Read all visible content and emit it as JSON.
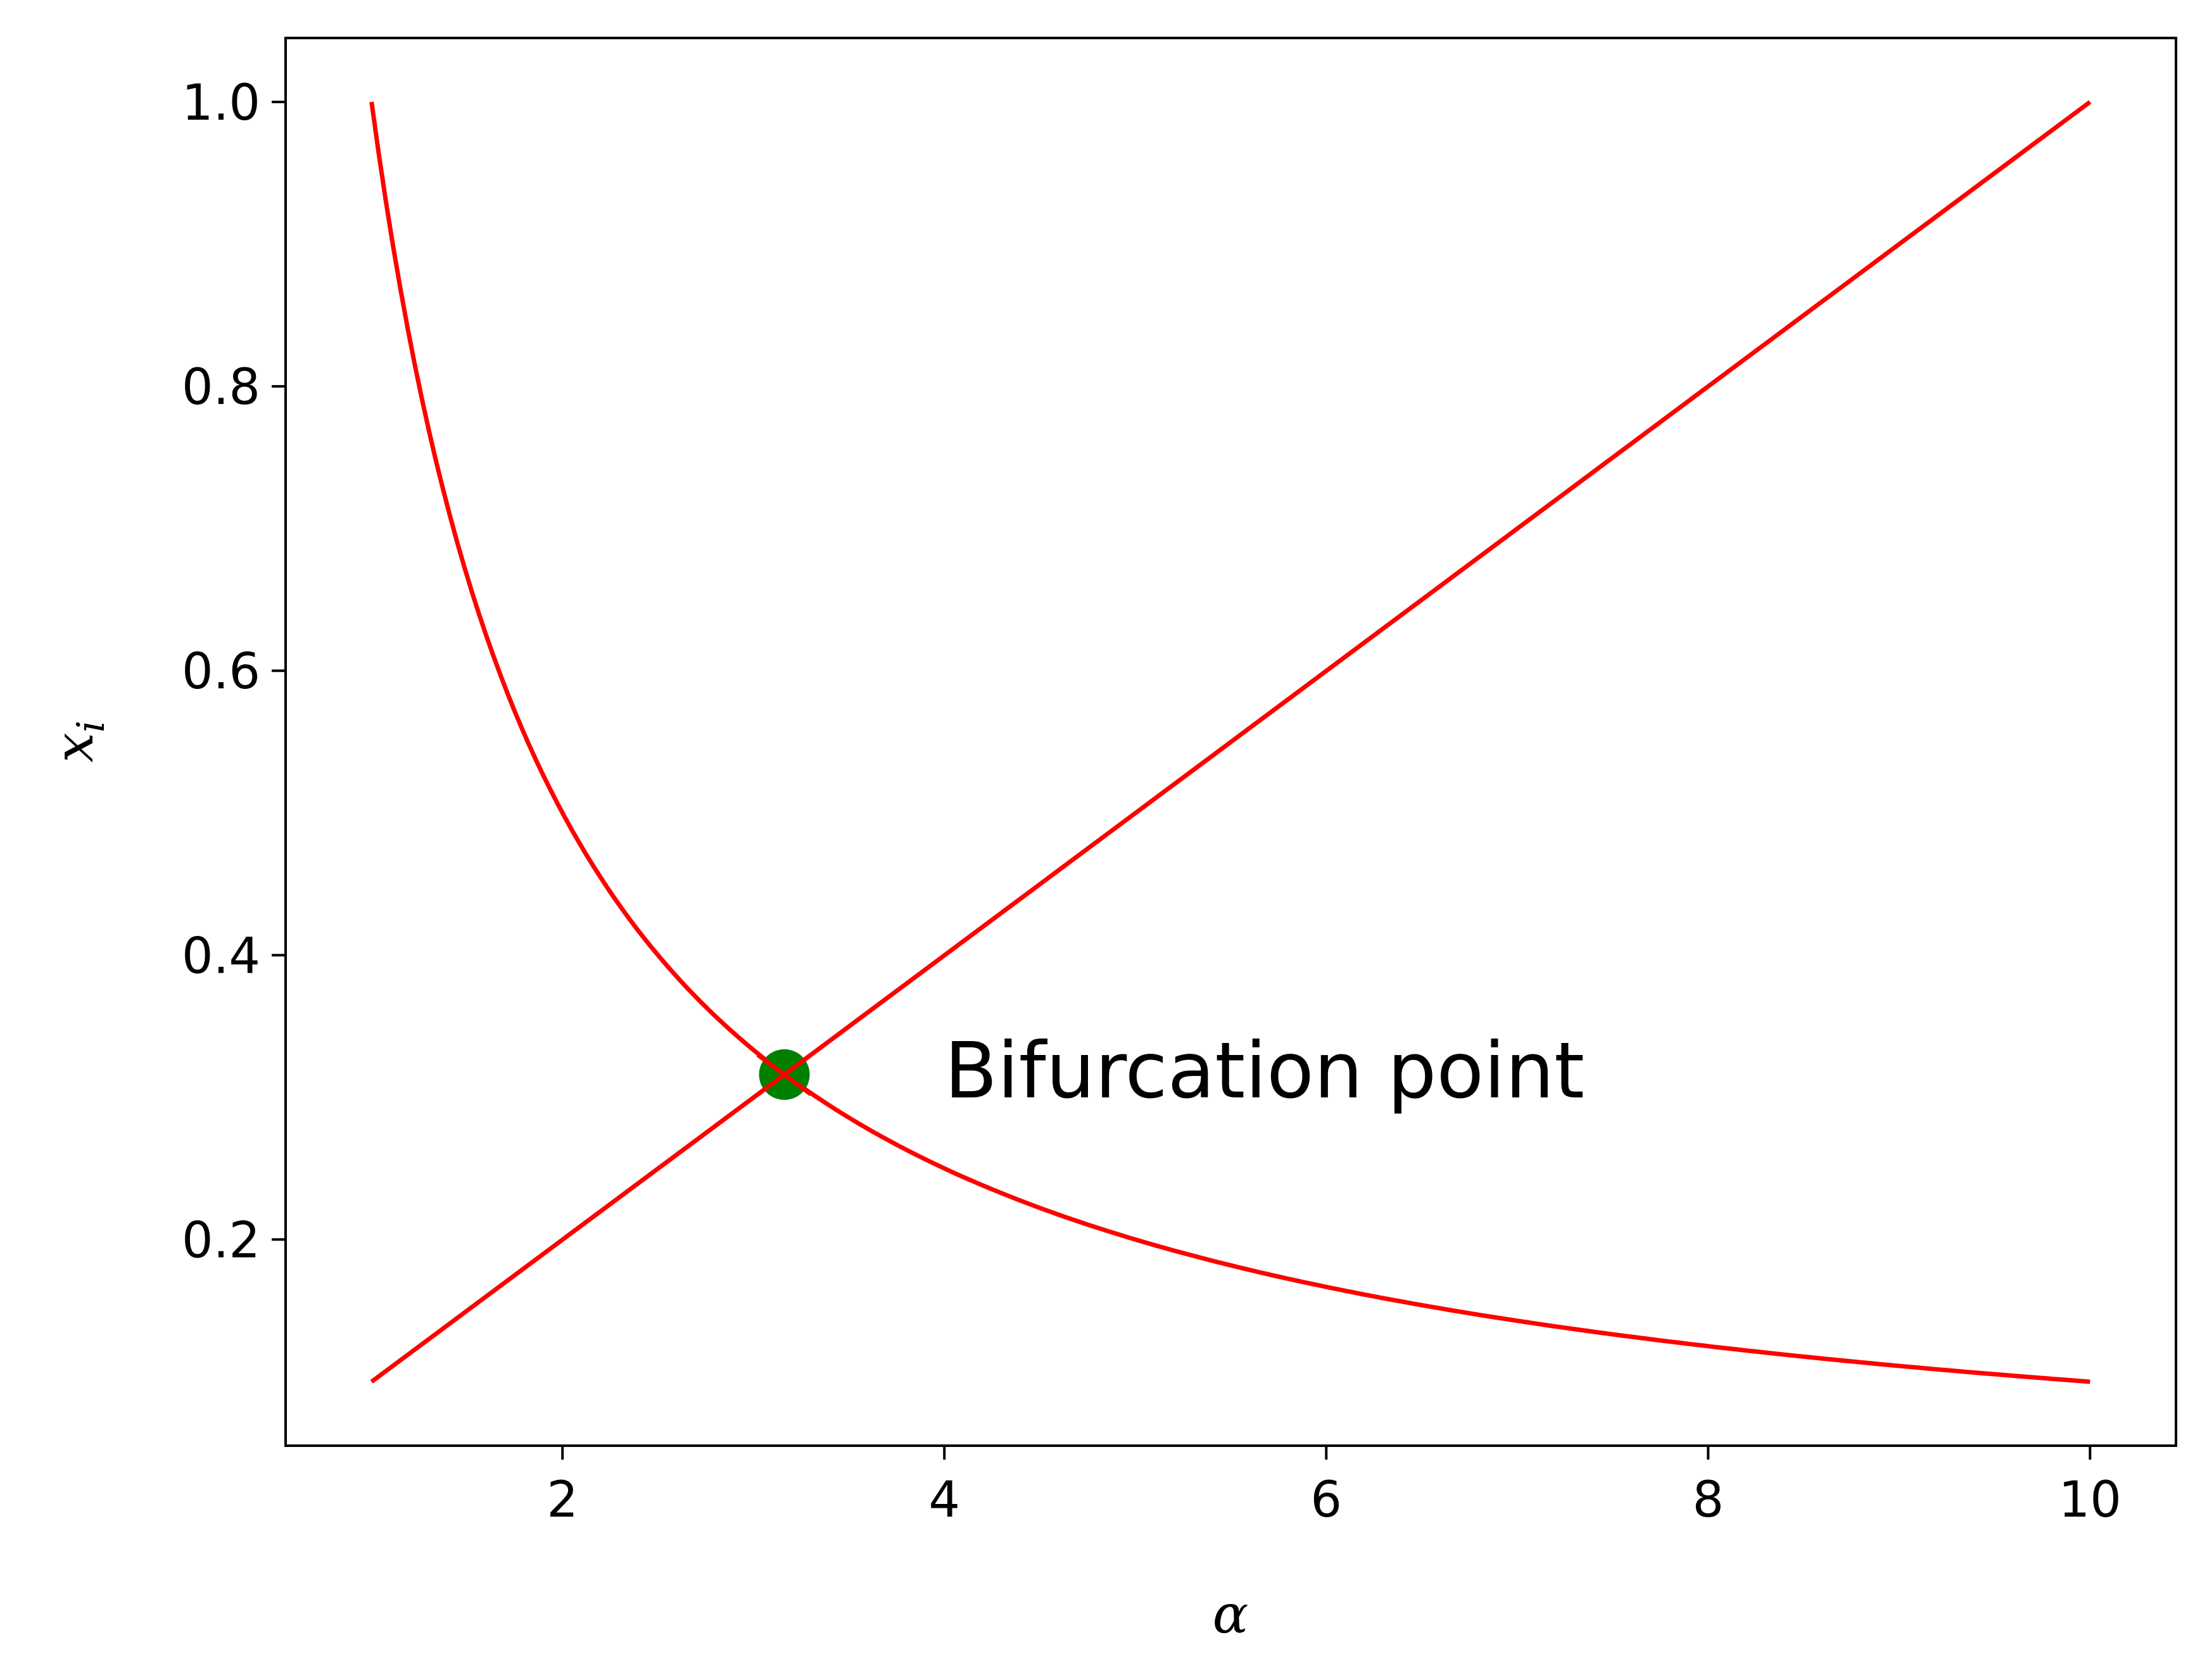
{
  "chart_data": {
    "type": "line",
    "title": "",
    "xlabel": "α",
    "ylabel": "x_i",
    "ylabel_main": "x",
    "ylabel_sub": "i",
    "xlim": [
      0.55,
      10.45
    ],
    "ylim": [
      0.055,
      1.045
    ],
    "xticks": [
      2,
      4,
      6,
      8,
      10
    ],
    "xtick_labels": [
      "2",
      "4",
      "6",
      "8",
      "10"
    ],
    "yticks": [
      0.2,
      0.4,
      0.6,
      0.8,
      1.0
    ],
    "ytick_labels": [
      "0.2",
      "0.4",
      "0.6",
      "0.8",
      "1.0"
    ],
    "grid": false,
    "series": [
      {
        "color": "#ff0000",
        "x": [
          1.0,
          1.25,
          1.5,
          1.75,
          2.0,
          2.5,
          3.0,
          3.162,
          3.5,
          4.0,
          4.5,
          5.0,
          6.0,
          7.0,
          8.0,
          9.0,
          10.0
        ],
        "y": [
          1.0,
          0.8,
          0.667,
          0.571,
          0.5,
          0.4,
          0.333,
          0.316,
          0.286,
          0.25,
          0.222,
          0.2,
          0.167,
          0.143,
          0.125,
          0.111,
          0.1
        ]
      },
      {
        "color": "#ff0000",
        "x": [
          1.0,
          3.162,
          10.0
        ],
        "y": [
          0.1,
          0.316,
          1.0
        ]
      }
    ],
    "points": [
      {
        "x": 3.162,
        "y": 0.316,
        "color": "#008000"
      }
    ],
    "annotations": [
      {
        "text": "Bifurcation point",
        "x": 4.0,
        "y": 0.3
      }
    ]
  }
}
